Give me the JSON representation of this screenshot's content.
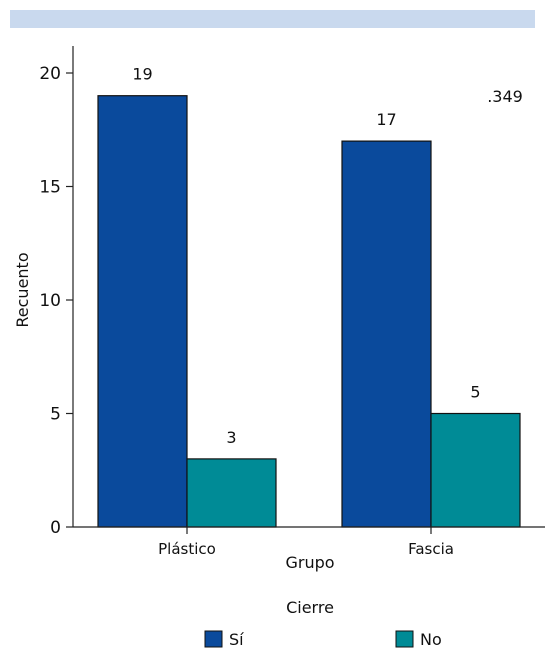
{
  "chart_data": {
    "type": "bar",
    "categories": [
      "Plástico",
      "Fascia"
    ],
    "series": [
      {
        "name": "Sí",
        "values": [
          19,
          17
        ],
        "color": "#0a4a9c"
      },
      {
        "name": "No",
        "values": [
          3,
          5
        ],
        "color": "#008b96"
      }
    ],
    "xlabel": "Grupo",
    "ylabel": "Recuento",
    "ylim": [
      0,
      20
    ],
    "yticks": [
      "0",
      "5",
      "10",
      "15",
      "20"
    ],
    "annotation": ".349",
    "legend_title": "Cierre",
    "legend_position": "bottom",
    "grid": false,
    "header_band_color": "#c9d9ee"
  }
}
